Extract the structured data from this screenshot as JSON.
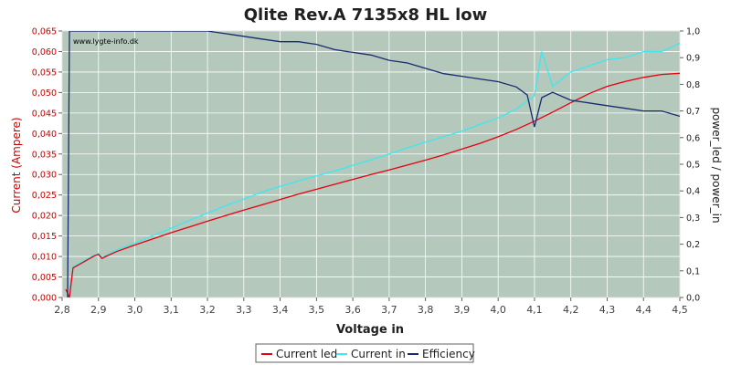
{
  "chart_data": {
    "type": "line",
    "title": "Qlite Rev.A 7135x8 HL low",
    "watermark": "www.lygte-info.dk",
    "xlabel": "Voltage in",
    "ylabel": "Current (Ampere)",
    "y2label": "power_led / power_in",
    "xlim": [
      2.8,
      4.5
    ],
    "ylim": [
      0,
      0.065
    ],
    "y2lim": [
      0,
      1.0
    ],
    "x_ticks": [
      "2,8",
      "2,9",
      "3,0",
      "3,1",
      "3,2",
      "3,3",
      "3,4",
      "3,5",
      "3,6",
      "3,7",
      "3,8",
      "3,9",
      "4,0",
      "4,1",
      "4,2",
      "4,3",
      "4,4",
      "4,5"
    ],
    "y_ticks": [
      "0,000",
      "0,005",
      "0,010",
      "0,015",
      "0,020",
      "0,025",
      "0,030",
      "0,035",
      "0,040",
      "0,045",
      "0,050",
      "0,055",
      "0,060",
      "0,065"
    ],
    "y2_ticks": [
      "0,0",
      "0,1",
      "0,2",
      "0,3",
      "0,4",
      "0,5",
      "0,6",
      "0,7",
      "0,8",
      "0,9",
      "1,0"
    ],
    "grid": true,
    "legend_position": "bottom-center",
    "colors": {
      "plot_bg": "#b4c8bc",
      "grid": "#ffffff",
      "current_led": "#e8000b",
      "current_in": "#3de8f0",
      "efficiency": "#1a2a6e"
    },
    "series": [
      {
        "name": "Current led",
        "axis": "left",
        "x": [
          2.81,
          2.82,
          2.83,
          2.85,
          2.87,
          2.89,
          2.9,
          2.91,
          2.92,
          2.95,
          3.0,
          3.05,
          3.1,
          3.15,
          3.2,
          3.25,
          3.3,
          3.35,
          3.4,
          3.45,
          3.5,
          3.55,
          3.6,
          3.65,
          3.7,
          3.75,
          3.8,
          3.85,
          3.9,
          3.95,
          4.0,
          4.05,
          4.1,
          4.15,
          4.2,
          4.25,
          4.3,
          4.35,
          4.4,
          4.45,
          4.5
        ],
        "y": [
          0.002,
          0.0,
          0.0072,
          0.0082,
          0.0092,
          0.0102,
          0.0105,
          0.0095,
          0.01,
          0.0112,
          0.0128,
          0.0143,
          0.0158,
          0.0172,
          0.0186,
          0.02,
          0.0213,
          0.0226,
          0.0239,
          0.0252,
          0.0264,
          0.0276,
          0.0288,
          0.03,
          0.0311,
          0.0323,
          0.0335,
          0.0348,
          0.0362,
          0.0376,
          0.0392,
          0.041,
          0.043,
          0.0452,
          0.0475,
          0.0497,
          0.0515,
          0.0527,
          0.0537,
          0.0544,
          0.0547
        ]
      },
      {
        "name": "Current in",
        "axis": "left",
        "x": [
          2.81,
          2.82,
          2.83,
          2.85,
          2.87,
          2.89,
          2.9,
          2.91,
          2.92,
          2.95,
          3.0,
          3.05,
          3.1,
          3.15,
          3.2,
          3.25,
          3.3,
          3.35,
          3.4,
          3.45,
          3.5,
          3.55,
          3.6,
          3.65,
          3.7,
          3.75,
          3.8,
          3.85,
          3.9,
          3.95,
          4.0,
          4.05,
          4.1,
          4.12,
          4.15,
          4.2,
          4.25,
          4.3,
          4.35,
          4.4,
          4.45,
          4.5
        ],
        "y": [
          0.002,
          0.0,
          0.0075,
          0.0085,
          0.0095,
          0.0104,
          0.0107,
          0.0097,
          0.0102,
          0.0116,
          0.0133,
          0.0151,
          0.0169,
          0.0188,
          0.0206,
          0.0224,
          0.024,
          0.0257,
          0.0271,
          0.0284,
          0.0297,
          0.0309,
          0.0322,
          0.0336,
          0.035,
          0.0365,
          0.0379,
          0.0392,
          0.0406,
          0.0422,
          0.0438,
          0.046,
          0.0492,
          0.06,
          0.0515,
          0.055,
          0.0565,
          0.058,
          0.0585,
          0.06,
          0.06,
          0.062
        ]
      },
      {
        "name": "Efficiency",
        "axis": "right",
        "x": [
          2.815,
          2.82,
          2.83,
          2.85,
          2.9,
          3.0,
          3.1,
          3.2,
          3.25,
          3.3,
          3.35,
          3.4,
          3.45,
          3.5,
          3.55,
          3.6,
          3.65,
          3.7,
          3.75,
          3.8,
          3.85,
          3.9,
          3.95,
          4.0,
          4.05,
          4.08,
          4.1,
          4.12,
          4.15,
          4.2,
          4.25,
          4.3,
          4.35,
          4.4,
          4.45,
          4.5
        ],
        "y": [
          0.0,
          1.0,
          1.0,
          1.0,
          1.0,
          1.0,
          1.0,
          1.0,
          0.99,
          0.98,
          0.97,
          0.96,
          0.96,
          0.95,
          0.93,
          0.92,
          0.91,
          0.89,
          0.88,
          0.86,
          0.84,
          0.83,
          0.82,
          0.81,
          0.79,
          0.76,
          0.64,
          0.75,
          0.77,
          0.74,
          0.73,
          0.72,
          0.71,
          0.7,
          0.7,
          0.68
        ]
      }
    ]
  }
}
